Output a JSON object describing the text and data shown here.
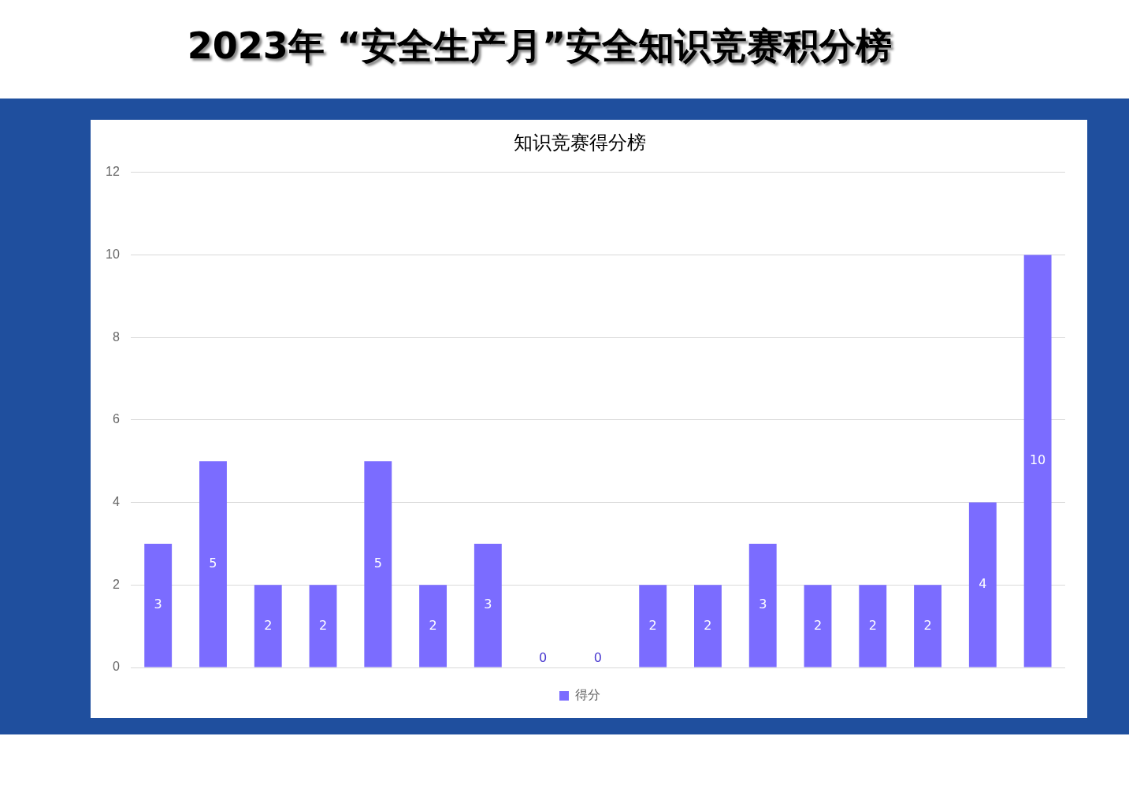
{
  "chart_data": {
    "type": "bar",
    "title": "2023年 “安全生产月”安全知识竞赛积分榜",
    "subtitle": "知识竞赛得分榜",
    "categories": [
      null,
      null,
      null,
      null,
      null,
      null,
      null,
      null,
      null,
      null,
      null,
      null,
      null,
      null,
      null,
      null,
      null
    ],
    "series": [
      {
        "name": "得分",
        "color": "#7b6cff",
        "values": [
          3,
          5,
          2,
          2,
          5,
          2,
          3,
          0,
          0,
          2,
          2,
          3,
          2,
          2,
          2,
          4,
          10
        ]
      }
    ],
    "ylim": [
      0,
      12
    ],
    "yticks": [
      0,
      2,
      4,
      6,
      8,
      10,
      12
    ],
    "grid": "y",
    "tick_labels": "y",
    "legend": "bottom",
    "data_labels": true
  }
}
